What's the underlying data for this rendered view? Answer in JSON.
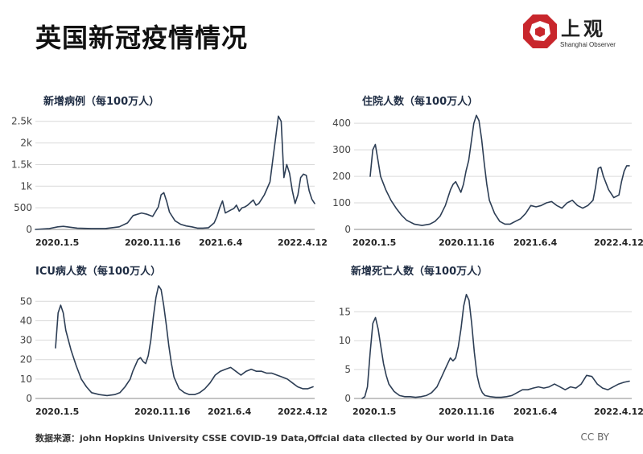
{
  "page": {
    "title": "英国新冠疫情情况",
    "logo": {
      "cn": "上观",
      "en": "Shanghai Observer"
    },
    "source": "数据来源：john Hopkins University CSSE COVID-19 Data,Offcial data cllected by Our world in Data",
    "license": "CC BY"
  },
  "colors": {
    "line": "#2d3e55",
    "grid": "#d9d9d9",
    "logo_red": "#c8262c"
  },
  "chart_data": [
    {
      "type": "line",
      "title": "新增病例（每100万人）",
      "x_tick_labels": [
        "2020.1.5",
        "2020.11.16",
        "2021.6.4",
        "2022.4.12"
      ],
      "y_ticks": [
        0,
        500,
        1000,
        1500,
        2000,
        2500
      ],
      "y_tick_labels": [
        "0",
        "500",
        "1k",
        "1.5k",
        "2k",
        "2.5k"
      ],
      "ylim": [
        0,
        2700
      ],
      "grid": true,
      "x": [
        0.0,
        0.05,
        0.08,
        0.1,
        0.15,
        0.2,
        0.25,
        0.3,
        0.33,
        0.35,
        0.38,
        0.4,
        0.42,
        0.44,
        0.45,
        0.46,
        0.47,
        0.48,
        0.5,
        0.52,
        0.54,
        0.56,
        0.58,
        0.6,
        0.62,
        0.64,
        0.65,
        0.66,
        0.67,
        0.68,
        0.7,
        0.71,
        0.72,
        0.73,
        0.74,
        0.75,
        0.76,
        0.77,
        0.78,
        0.79,
        0.8,
        0.81,
        0.82,
        0.83,
        0.84,
        0.85,
        0.86,
        0.87,
        0.88,
        0.89,
        0.9,
        0.91,
        0.92,
        0.93,
        0.94,
        0.95,
        0.96,
        0.97,
        0.98,
        0.99,
        1.0
      ],
      "values": [
        0,
        20,
        60,
        70,
        30,
        20,
        20,
        60,
        150,
        320,
        380,
        350,
        300,
        520,
        800,
        850,
        650,
        400,
        200,
        120,
        80,
        60,
        30,
        30,
        40,
        150,
        300,
        500,
        660,
        380,
        450,
        480,
        560,
        420,
        500,
        520,
        560,
        620,
        680,
        560,
        600,
        700,
        800,
        950,
        1100,
        1600,
        2100,
        2620,
        2500,
        1200,
        1500,
        1300,
        900,
        600,
        800,
        1200,
        1280,
        1250,
        900,
        700,
        600
      ]
    },
    {
      "type": "line",
      "title": "住院人数（每100万人）",
      "x_tick_labels": [
        "2020.1.5",
        "2020.11.16",
        "2021.6.4",
        "2022.4.12"
      ],
      "y_ticks": [
        0,
        100,
        200,
        300,
        400
      ],
      "y_tick_labels": [
        "0",
        "100",
        "200",
        "300",
        "400"
      ],
      "ylim": [
        0,
        440
      ],
      "grid": true,
      "x": [
        0.0,
        0.01,
        0.02,
        0.03,
        0.04,
        0.06,
        0.08,
        0.1,
        0.12,
        0.14,
        0.17,
        0.2,
        0.23,
        0.25,
        0.27,
        0.29,
        0.3,
        0.31,
        0.32,
        0.33,
        0.34,
        0.35,
        0.36,
        0.37,
        0.38,
        0.39,
        0.4,
        0.41,
        0.42,
        0.43,
        0.44,
        0.45,
        0.46,
        0.48,
        0.5,
        0.52,
        0.54,
        0.56,
        0.58,
        0.6,
        0.62,
        0.64,
        0.66,
        0.68,
        0.7,
        0.72,
        0.74,
        0.76,
        0.78,
        0.8,
        0.82,
        0.84,
        0.86,
        0.87,
        0.88,
        0.89,
        0.9,
        0.92,
        0.94,
        0.96,
        0.97,
        0.98,
        0.99,
        1.0
      ],
      "values": [
        200,
        300,
        320,
        260,
        200,
        150,
        110,
        80,
        55,
        35,
        20,
        15,
        20,
        30,
        50,
        90,
        120,
        150,
        170,
        180,
        160,
        140,
        170,
        220,
        260,
        330,
        400,
        430,
        410,
        340,
        250,
        170,
        110,
        60,
        30,
        20,
        20,
        30,
        40,
        60,
        90,
        85,
        90,
        100,
        105,
        90,
        80,
        100,
        110,
        90,
        80,
        90,
        110,
        160,
        230,
        235,
        200,
        150,
        120,
        130,
        180,
        220,
        240,
        240
      ]
    },
    {
      "type": "line",
      "title": "ICU病人数（每100万人）",
      "x_tick_labels": [
        "2020.1.5",
        "2020.11.16",
        "2021.6.4",
        "2022.4.12"
      ],
      "y_ticks": [
        0,
        10,
        20,
        30,
        40,
        50
      ],
      "y_tick_labels": [
        "0",
        "10",
        "20",
        "30",
        "40",
        "50"
      ],
      "ylim": [
        0,
        58
      ],
      "grid": true,
      "x": [
        0.0,
        0.01,
        0.02,
        0.03,
        0.04,
        0.06,
        0.08,
        0.1,
        0.12,
        0.14,
        0.17,
        0.2,
        0.23,
        0.25,
        0.27,
        0.29,
        0.3,
        0.31,
        0.32,
        0.33,
        0.34,
        0.35,
        0.36,
        0.37,
        0.38,
        0.39,
        0.4,
        0.41,
        0.42,
        0.43,
        0.44,
        0.45,
        0.46,
        0.48,
        0.5,
        0.52,
        0.54,
        0.56,
        0.58,
        0.6,
        0.62,
        0.64,
        0.66,
        0.68,
        0.7,
        0.72,
        0.74,
        0.76,
        0.78,
        0.8,
        0.82,
        0.84,
        0.86,
        0.88,
        0.9,
        0.92,
        0.94,
        0.96,
        0.98,
        1.0
      ],
      "values": [
        26,
        44,
        48,
        44,
        35,
        25,
        17,
        10,
        6,
        3,
        2,
        1.5,
        2,
        3,
        6,
        10,
        14,
        17,
        20,
        21,
        19,
        18,
        22,
        30,
        42,
        52,
        58,
        56,
        48,
        38,
        27,
        18,
        11,
        5,
        3,
        2,
        2,
        3,
        5,
        8,
        12,
        14,
        15,
        16,
        14,
        12,
        14,
        15,
        14,
        14,
        13,
        13,
        12,
        11,
        10,
        8,
        6,
        5,
        5,
        6
      ]
    },
    {
      "type": "line",
      "title": "新增死亡人数（每100万人）",
      "x_tick_labels": [
        "2020.1.5",
        "2020.11.16",
        "2021.6.4",
        "2022.4.12"
      ],
      "y_ticks": [
        0,
        5,
        10,
        15
      ],
      "y_tick_labels": [
        "0",
        "5",
        "10",
        "15"
      ],
      "ylim": [
        0,
        19.5
      ],
      "grid": true,
      "x": [
        0.0,
        0.01,
        0.02,
        0.03,
        0.04,
        0.05,
        0.06,
        0.07,
        0.08,
        0.09,
        0.1,
        0.12,
        0.14,
        0.16,
        0.18,
        0.2,
        0.22,
        0.24,
        0.26,
        0.28,
        0.3,
        0.31,
        0.32,
        0.33,
        0.34,
        0.35,
        0.36,
        0.37,
        0.38,
        0.39,
        0.4,
        0.41,
        0.42,
        0.43,
        0.44,
        0.45,
        0.46,
        0.48,
        0.5,
        0.52,
        0.54,
        0.56,
        0.58,
        0.6,
        0.62,
        0.64,
        0.66,
        0.68,
        0.7,
        0.72,
        0.74,
        0.76,
        0.78,
        0.8,
        0.82,
        0.84,
        0.86,
        0.88,
        0.9,
        0.92,
        0.94,
        0.96,
        0.98,
        1.0
      ],
      "values": [
        0,
        0.3,
        2,
        8,
        13,
        14,
        12,
        9,
        6,
        4,
        2.5,
        1.2,
        0.5,
        0.3,
        0.3,
        0.2,
        0.3,
        0.5,
        1,
        2,
        4,
        5,
        6,
        7,
        6.5,
        7,
        9,
        12,
        16,
        18,
        17,
        13,
        8,
        4,
        2,
        1,
        0.5,
        0.3,
        0.2,
        0.2,
        0.3,
        0.5,
        1,
        1.5,
        1.5,
        1.8,
        2,
        1.8,
        2,
        2.5,
        2,
        1.5,
        2,
        1.8,
        2.5,
        4,
        3.8,
        2.5,
        1.8,
        1.5,
        2,
        2.5,
        2.8,
        3
      ]
    }
  ]
}
